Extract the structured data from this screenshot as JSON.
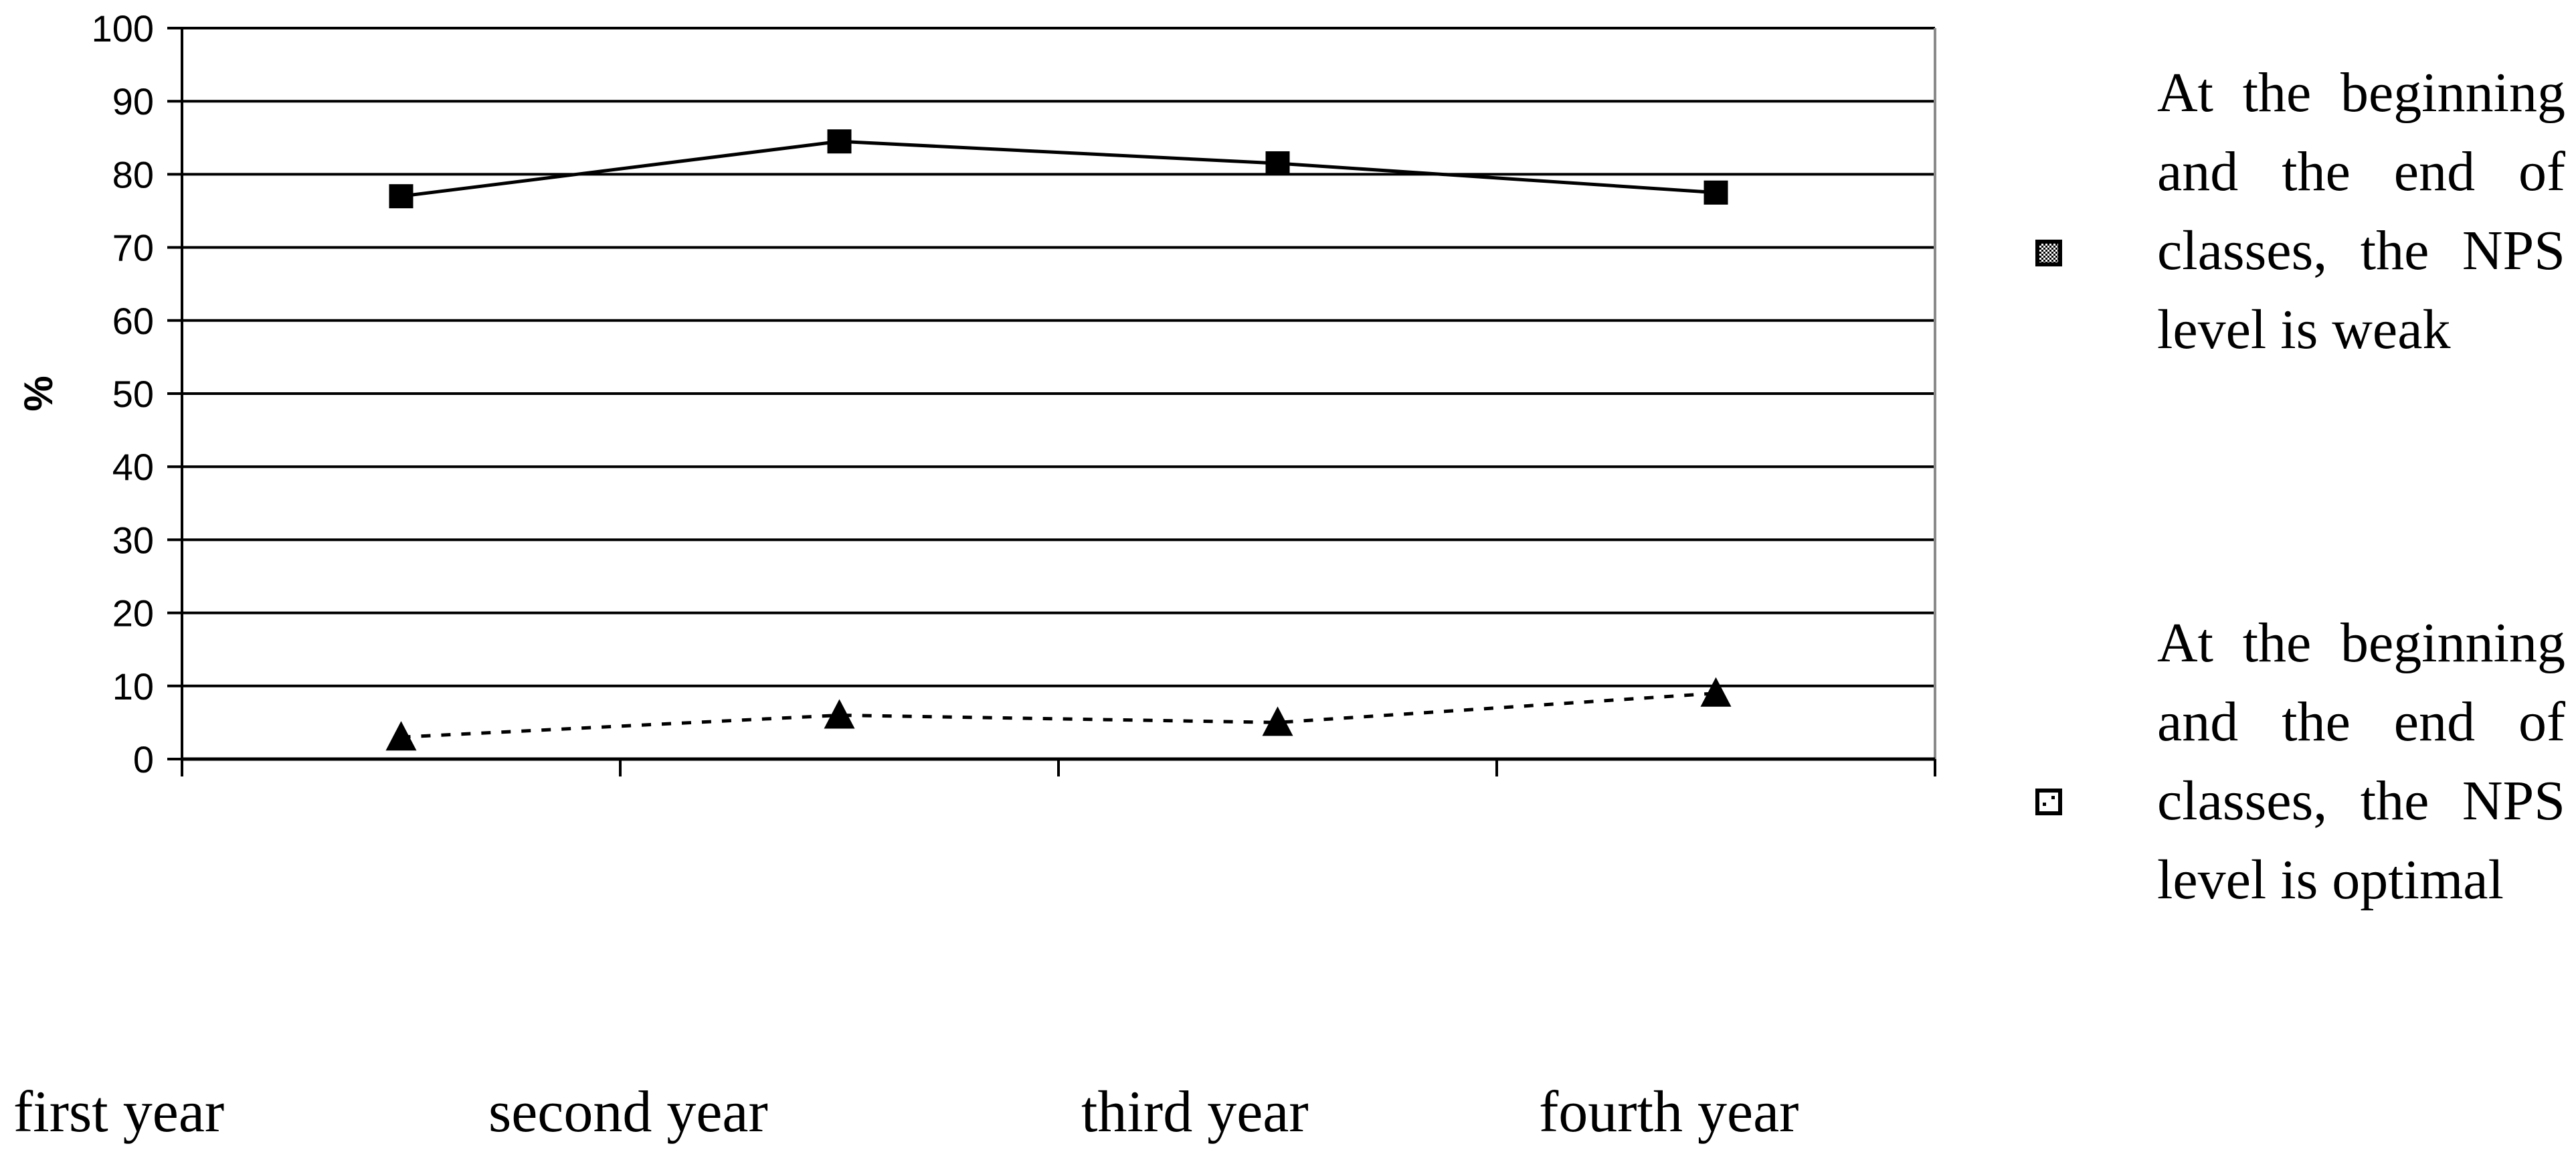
{
  "chart_data": {
    "type": "line",
    "title": "",
    "xlabel": "",
    "ylabel": "%",
    "ylim": [
      0,
      100
    ],
    "yticks": [
      0,
      10,
      20,
      30,
      40,
      50,
      60,
      70,
      80,
      90,
      100
    ],
    "categories": [
      "first year",
      "second year",
      "third year",
      "fourth year"
    ],
    "grid": true,
    "legend_position": "right",
    "series": [
      {
        "name": "At the beginning and the end of classes, the NPS level is weak",
        "values": [
          77,
          84.5,
          81.5,
          77.5
        ],
        "marker": "square",
        "line_style": "solid",
        "color": "#000000"
      },
      {
        "name": "At the beginning and the end of classes, the NPS level is optimal",
        "values": [
          3,
          6,
          5,
          9
        ],
        "marker": "triangle",
        "line_style": "dotted",
        "color": "#000000"
      }
    ]
  }
}
